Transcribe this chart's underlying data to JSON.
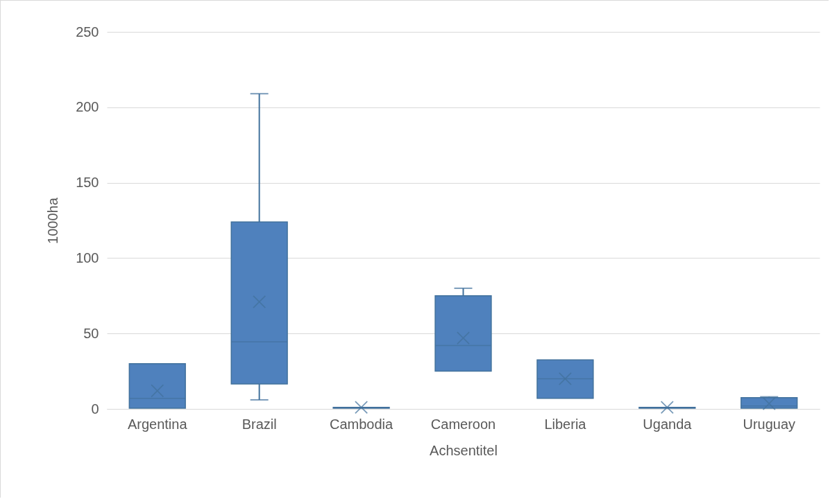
{
  "chart_data": {
    "type": "box",
    "xlabel": "Achsentitel",
    "ylabel": "1000ha",
    "categories": [
      "Argentina",
      "Brazil",
      "Cambodia",
      "Cameroon",
      "Liberia",
      "Uganda",
      "Uruguay"
    ],
    "boxes": [
      {
        "low": 0.5,
        "q1": 0.5,
        "median": 7,
        "q3": 30,
        "high": 30,
        "mean": 12
      },
      {
        "low": 6,
        "q1": 16.5,
        "median": 44.5,
        "q3": 124,
        "high": 209,
        "mean": 71
      },
      {
        "low": 0.5,
        "q1": 0.5,
        "median": 1,
        "q3": 1,
        "high": 1,
        "mean": 1
      },
      {
        "low": 25,
        "q1": 25,
        "median": 42,
        "q3": 75,
        "high": 80,
        "mean": 47
      },
      {
        "low": 7,
        "q1": 7,
        "median": 20,
        "q3": 32.5,
        "high": 32.5,
        "mean": 20
      },
      {
        "low": 0.5,
        "q1": 0.5,
        "median": 1,
        "q3": 1,
        "high": 1,
        "mean": 1
      },
      {
        "low": 0.5,
        "q1": 0.5,
        "median": 2,
        "q3": 7.5,
        "high": 8,
        "mean": 3.5
      }
    ],
    "color": "#4f81bd",
    "ylim": [
      0,
      250
    ],
    "yticks": [
      0,
      50,
      100,
      150,
      200,
      250
    ],
    "grid": "y",
    "marker": "cross"
  }
}
